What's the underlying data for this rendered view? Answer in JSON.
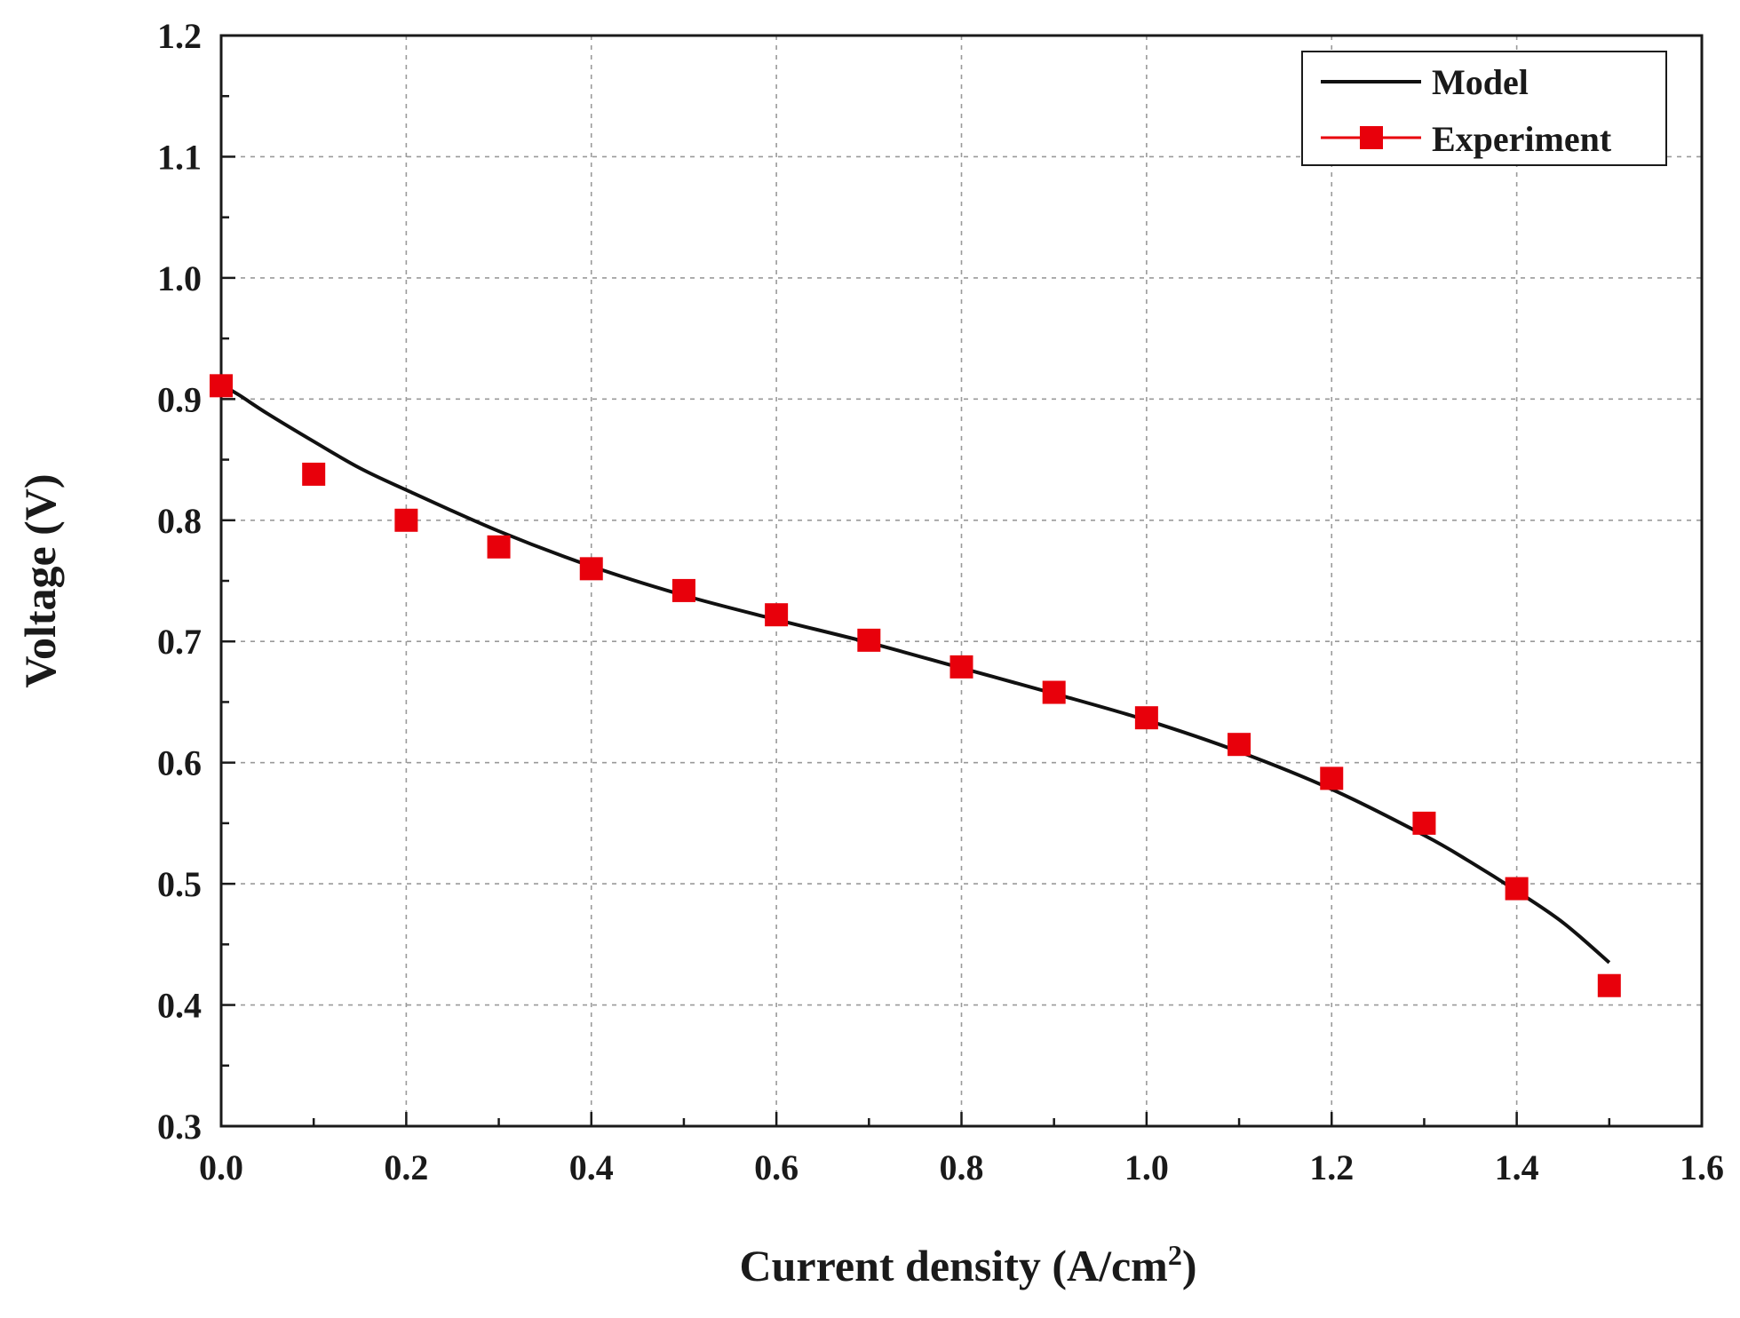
{
  "chart_data": {
    "type": "line",
    "title": "",
    "xlabel": "Current density (A/cm",
    "xlabel_superscript": "2",
    "xlabel_suffix": ")",
    "ylabel": "Voltage (V)",
    "xlim": [
      0.0,
      1.6
    ],
    "ylim": [
      0.3,
      1.2
    ],
    "grid": true,
    "legend_position": "top-right",
    "x_ticks": [
      0.0,
      0.2,
      0.4,
      0.6,
      0.8,
      1.0,
      1.2,
      1.4,
      1.6
    ],
    "x_tick_labels": [
      "0.0",
      "0.2",
      "0.4",
      "0.6",
      "0.8",
      "1.0",
      "1.2",
      "1.4",
      "1.6"
    ],
    "y_ticks": [
      0.3,
      0.4,
      0.5,
      0.6,
      0.7,
      0.8,
      0.9,
      1.0,
      1.1,
      1.2
    ],
    "y_tick_labels": [
      "0.3",
      "0.4",
      "0.5",
      "0.6",
      "0.7",
      "0.8",
      "0.9",
      "1.0",
      "1.1",
      "1.2"
    ],
    "series": [
      {
        "name": "Model",
        "style": "line",
        "color": "#111111",
        "x": [
          0.0,
          0.02,
          0.05,
          0.1,
          0.15,
          0.2,
          0.3,
          0.4,
          0.5,
          0.6,
          0.7,
          0.8,
          0.9,
          1.0,
          1.1,
          1.2,
          1.3,
          1.35,
          1.4,
          1.45,
          1.5
        ],
        "y": [
          0.912,
          0.903,
          0.888,
          0.865,
          0.843,
          0.825,
          0.791,
          0.762,
          0.738,
          0.718,
          0.699,
          0.678,
          0.657,
          0.635,
          0.609,
          0.578,
          0.54,
          0.518,
          0.494,
          0.468,
          0.435
        ]
      },
      {
        "name": "Experiment",
        "style": "markers",
        "marker": "square",
        "color": "#e8000b",
        "x": [
          0.0,
          0.1,
          0.2,
          0.3,
          0.4,
          0.5,
          0.6,
          0.7,
          0.8,
          0.9,
          1.0,
          1.1,
          1.2,
          1.3,
          1.4,
          1.5
        ],
        "y": [
          0.911,
          0.838,
          0.8,
          0.778,
          0.76,
          0.742,
          0.722,
          0.701,
          0.679,
          0.658,
          0.637,
          0.615,
          0.587,
          0.55,
          0.496,
          0.416
        ]
      }
    ]
  }
}
